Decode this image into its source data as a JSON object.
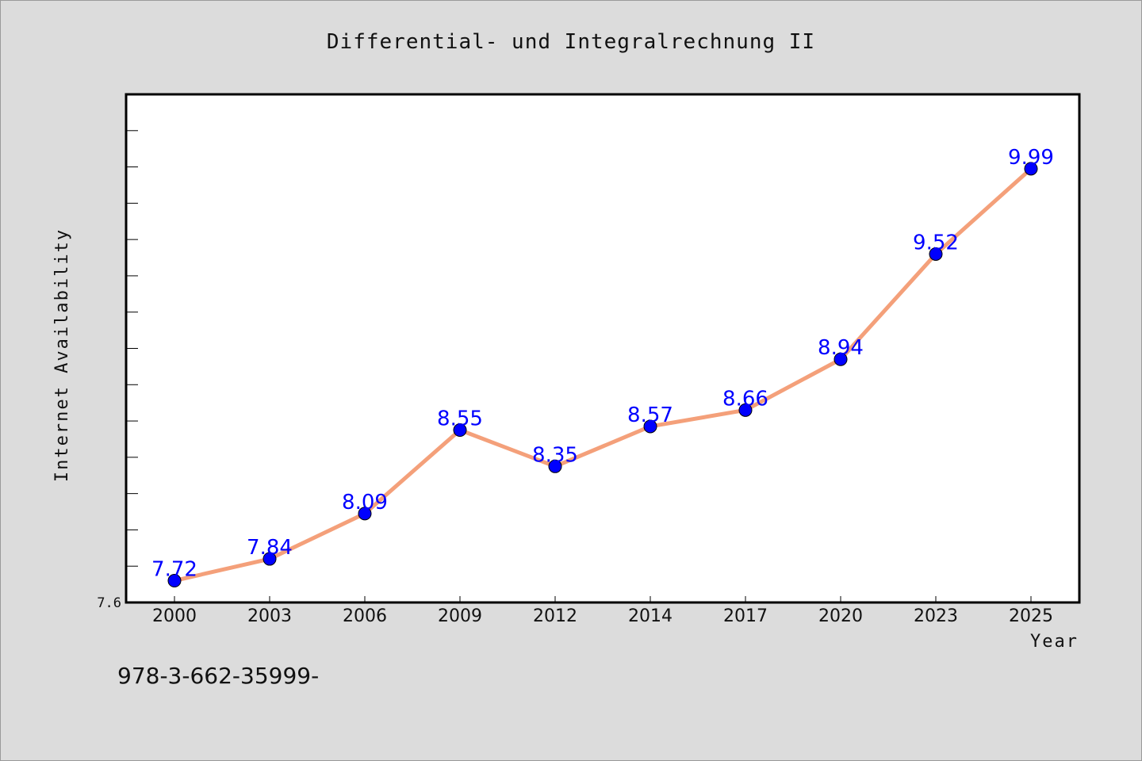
{
  "footer_text": "978-3-662-35999-",
  "colors": {
    "background": "#dcdcdc",
    "plot_background": "#ffffff",
    "line": "#f4a07a",
    "marker": "#0000ff",
    "data_label": "#0000ff"
  },
  "chart_data": {
    "type": "line",
    "title": "Differential- und Integralrechnung II",
    "xlabel": "Year",
    "ylabel": "Internet Availability",
    "categories": [
      "2000",
      "2003",
      "2006",
      "2009",
      "2012",
      "2014",
      "2017",
      "2020",
      "2023",
      "2025"
    ],
    "series": [
      {
        "values": [
          7.72,
          7.84,
          8.09,
          8.55,
          8.35,
          8.57,
          8.66,
          8.94,
          9.52,
          9.99
        ]
      }
    ],
    "ylim": [
      7.6,
      10.4
    ],
    "ytick_labels": [
      "7.6"
    ],
    "y_minor_step": 0.2,
    "grid": false,
    "legend": "none",
    "data_labels": true
  }
}
